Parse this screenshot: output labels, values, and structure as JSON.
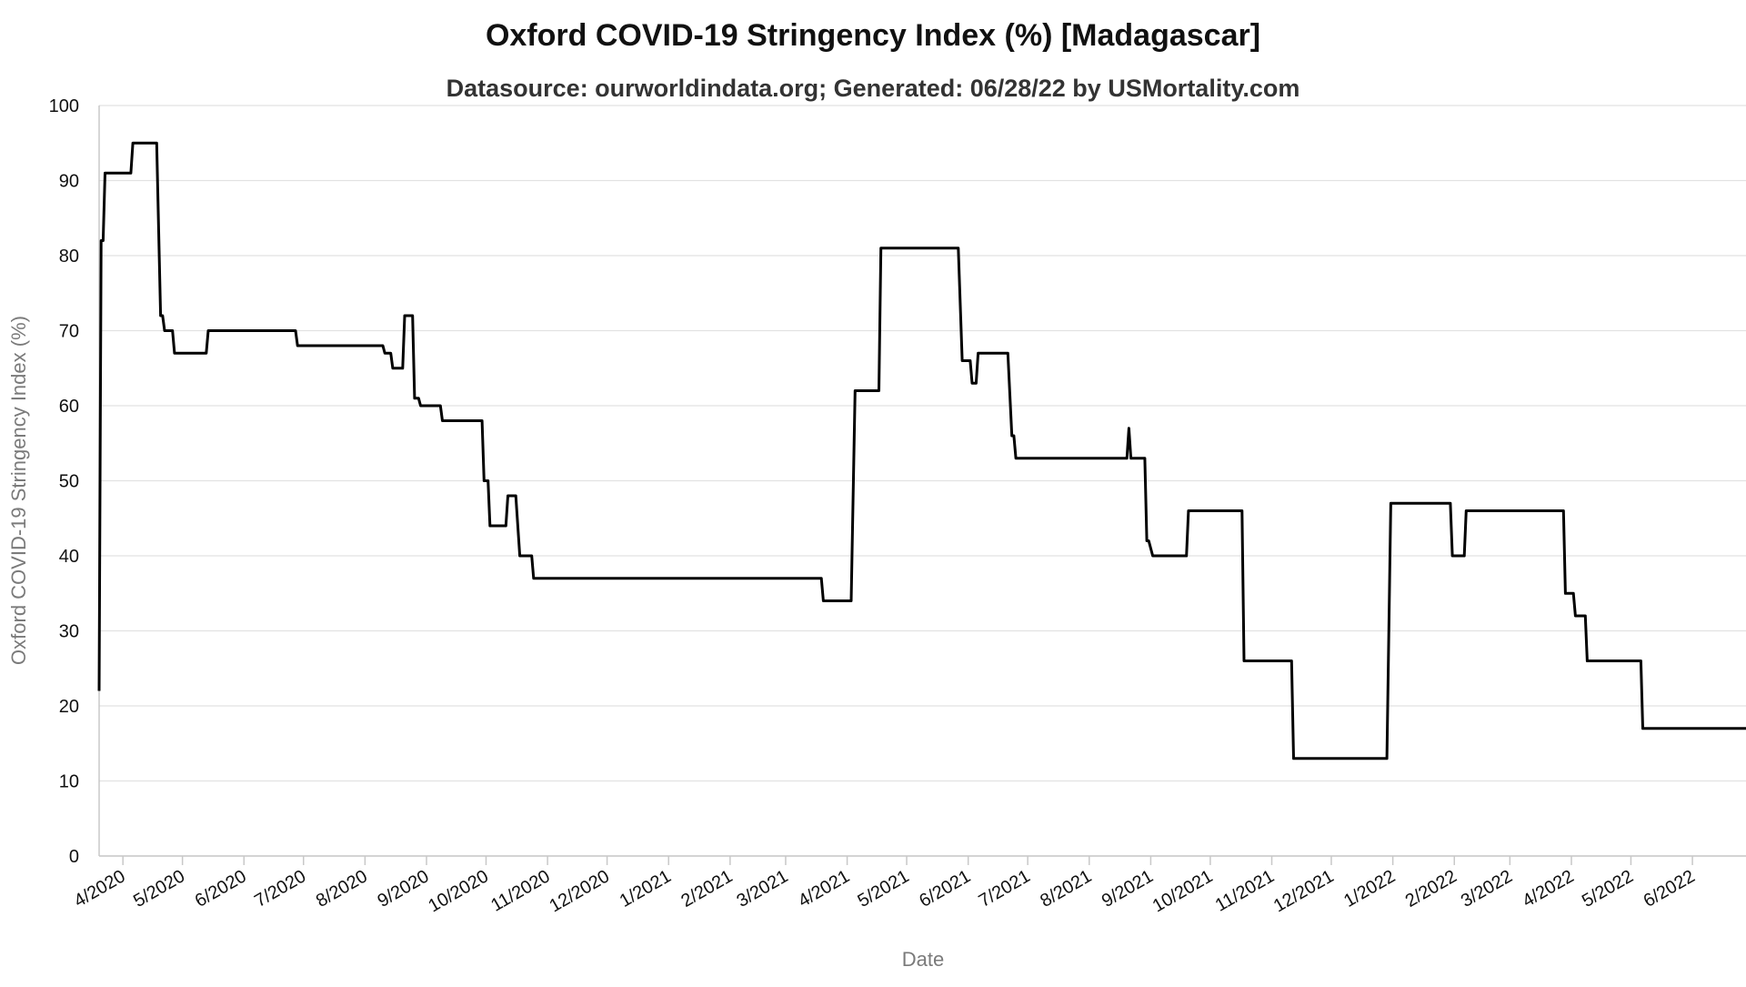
{
  "chart_data": {
    "type": "line",
    "title": "Oxford COVID-19 Stringency Index (%) [Madagascar]",
    "subtitle": "Datasource: ourworldindata.org; Generated: 06/28/22 by USMortality.com",
    "xlabel": "Date",
    "ylabel": "Oxford COVID-19 Stringency Index (%)",
    "ylim": [
      0,
      100
    ],
    "yticks": [
      0,
      10,
      20,
      30,
      40,
      50,
      60,
      70,
      80,
      90,
      100
    ],
    "xlim": [
      "2020-03-20",
      "2022-06-28"
    ],
    "grid": true,
    "legend": "none",
    "line_color": "#000000",
    "xticks": [
      {
        "date": "2020-04-01",
        "label": "4/2020"
      },
      {
        "date": "2020-05-01",
        "label": "5/2020"
      },
      {
        "date": "2020-06-01",
        "label": "6/2020"
      },
      {
        "date": "2020-07-01",
        "label": "7/2020"
      },
      {
        "date": "2020-08-01",
        "label": "8/2020"
      },
      {
        "date": "2020-09-01",
        "label": "9/2020"
      },
      {
        "date": "2020-10-01",
        "label": "10/2020"
      },
      {
        "date": "2020-11-01",
        "label": "11/2020"
      },
      {
        "date": "2020-12-01",
        "label": "12/2020"
      },
      {
        "date": "2021-01-01",
        "label": "1/2021"
      },
      {
        "date": "2021-02-01",
        "label": "2/2021"
      },
      {
        "date": "2021-03-01",
        "label": "3/2021"
      },
      {
        "date": "2021-04-01",
        "label": "4/2021"
      },
      {
        "date": "2021-05-01",
        "label": "5/2021"
      },
      {
        "date": "2021-06-01",
        "label": "6/2021"
      },
      {
        "date": "2021-07-01",
        "label": "7/2021"
      },
      {
        "date": "2021-08-01",
        "label": "8/2021"
      },
      {
        "date": "2021-09-01",
        "label": "9/2021"
      },
      {
        "date": "2021-10-01",
        "label": "10/2021"
      },
      {
        "date": "2021-11-01",
        "label": "11/2021"
      },
      {
        "date": "2021-12-01",
        "label": "12/2021"
      },
      {
        "date": "2022-01-01",
        "label": "1/2022"
      },
      {
        "date": "2022-02-01",
        "label": "2/2022"
      },
      {
        "date": "2022-03-01",
        "label": "3/2022"
      },
      {
        "date": "2022-04-01",
        "label": "4/2022"
      },
      {
        "date": "2022-05-01",
        "label": "5/2022"
      },
      {
        "date": "2022-06-01",
        "label": "6/2022"
      }
    ],
    "series": [
      {
        "points": [
          [
            "2020-03-20",
            22
          ],
          [
            "2020-03-21",
            82
          ],
          [
            "2020-03-22",
            82
          ],
          [
            "2020-03-23",
            91
          ],
          [
            "2020-04-05",
            91
          ],
          [
            "2020-04-06",
            95
          ],
          [
            "2020-04-18",
            95
          ],
          [
            "2020-04-20",
            72
          ],
          [
            "2020-04-21",
            72
          ],
          [
            "2020-04-22",
            70
          ],
          [
            "2020-04-26",
            70
          ],
          [
            "2020-04-27",
            67
          ],
          [
            "2020-05-13",
            67
          ],
          [
            "2020-05-14",
            70
          ],
          [
            "2020-06-27",
            70
          ],
          [
            "2020-06-28",
            68
          ],
          [
            "2020-08-10",
            68
          ],
          [
            "2020-08-11",
            67
          ],
          [
            "2020-08-14",
            67
          ],
          [
            "2020-08-15",
            65
          ],
          [
            "2020-08-20",
            65
          ],
          [
            "2020-08-21",
            72
          ],
          [
            "2020-08-25",
            72
          ],
          [
            "2020-08-26",
            61
          ],
          [
            "2020-08-28",
            61
          ],
          [
            "2020-08-29",
            60
          ],
          [
            "2020-09-08",
            60
          ],
          [
            "2020-09-09",
            58
          ],
          [
            "2020-09-29",
            58
          ],
          [
            "2020-09-30",
            50
          ],
          [
            "2020-10-02",
            50
          ],
          [
            "2020-10-03",
            44
          ],
          [
            "2020-10-11",
            44
          ],
          [
            "2020-10-12",
            48
          ],
          [
            "2020-10-16",
            48
          ],
          [
            "2020-10-18",
            40
          ],
          [
            "2020-10-24",
            40
          ],
          [
            "2020-10-25",
            37
          ],
          [
            "2021-03-19",
            37
          ],
          [
            "2021-03-20",
            34
          ],
          [
            "2021-04-03",
            34
          ],
          [
            "2021-04-05",
            62
          ],
          [
            "2021-04-17",
            62
          ],
          [
            "2021-04-18",
            81
          ],
          [
            "2021-05-27",
            81
          ],
          [
            "2021-05-29",
            66
          ],
          [
            "2021-06-02",
            66
          ],
          [
            "2021-06-03",
            63
          ],
          [
            "2021-06-05",
            63
          ],
          [
            "2021-06-06",
            67
          ],
          [
            "2021-06-21",
            67
          ],
          [
            "2021-06-23",
            56
          ],
          [
            "2021-06-24",
            56
          ],
          [
            "2021-06-25",
            53
          ],
          [
            "2021-08-20",
            53
          ],
          [
            "2021-08-21",
            57
          ],
          [
            "2021-08-22",
            53
          ],
          [
            "2021-08-29",
            53
          ],
          [
            "2021-08-30",
            42
          ],
          [
            "2021-08-31",
            42
          ],
          [
            "2021-09-02",
            40
          ],
          [
            "2021-09-19",
            40
          ],
          [
            "2021-09-20",
            46
          ],
          [
            "2021-10-17",
            46
          ],
          [
            "2021-10-18",
            26
          ],
          [
            "2021-11-11",
            26
          ],
          [
            "2021-11-12",
            13
          ],
          [
            "2021-12-29",
            13
          ],
          [
            "2021-12-31",
            47
          ],
          [
            "2022-01-30",
            47
          ],
          [
            "2022-01-31",
            40
          ],
          [
            "2022-02-06",
            40
          ],
          [
            "2022-02-07",
            46
          ],
          [
            "2022-03-28",
            46
          ],
          [
            "2022-03-29",
            35
          ],
          [
            "2022-04-02",
            35
          ],
          [
            "2022-04-03",
            32
          ],
          [
            "2022-04-08",
            32
          ],
          [
            "2022-04-09",
            26
          ],
          [
            "2022-05-06",
            26
          ],
          [
            "2022-05-07",
            17
          ],
          [
            "2022-06-28",
            17
          ]
        ]
      }
    ]
  }
}
